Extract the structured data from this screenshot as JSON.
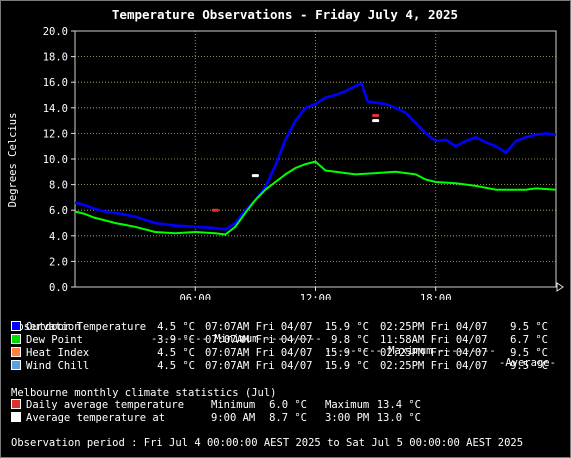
{
  "title": "Temperature Observations - Friday July 4, 2025",
  "chart_data": {
    "type": "line",
    "ylabel": "Degrees Celcius",
    "xlabel": "",
    "ylim": [
      0,
      20
    ],
    "xlim": [
      0,
      24
    ],
    "yticks": [
      "0.0",
      "2.0",
      "4.0",
      "6.0",
      "8.0",
      "10.0",
      "12.0",
      "14.0",
      "16.0",
      "18.0",
      "20.0"
    ],
    "xticks": [
      {
        "x": 6,
        "label": "06:00"
      },
      {
        "x": 12,
        "label": "12:00"
      },
      {
        "x": 18,
        "label": "18:00"
      }
    ],
    "grid": true,
    "series": [
      {
        "name": "Outdoor Temperature",
        "color": "#0000ff",
        "x": [
          0,
          0.5,
          1,
          1.5,
          2,
          3,
          4,
          5,
          6,
          7,
          7.5,
          8,
          8.5,
          9,
          9.5,
          10,
          10.5,
          11,
          11.5,
          12,
          12.5,
          13,
          13.5,
          14,
          14.3,
          14.6,
          15,
          15.5,
          16,
          16.5,
          17,
          17.5,
          18,
          18.5,
          19,
          19.5,
          20,
          20.5,
          21,
          21.5,
          22,
          22.5,
          23,
          23.5,
          24
        ],
        "y": [
          6.6,
          6.4,
          6.1,
          5.9,
          5.8,
          5.5,
          5.0,
          4.8,
          4.7,
          4.6,
          4.5,
          5.0,
          6.0,
          6.8,
          7.8,
          9.5,
          11.5,
          13.0,
          14.0,
          14.3,
          14.8,
          15.0,
          15.3,
          15.7,
          15.9,
          14.5,
          14.4,
          14.3,
          14.0,
          13.6,
          12.8,
          12.0,
          11.4,
          11.5,
          11.0,
          11.4,
          11.7,
          11.3,
          11.0,
          10.5,
          11.4,
          11.7,
          11.9,
          12.0,
          11.9
        ]
      },
      {
        "name": "Dew Point",
        "color": "#00ff00",
        "x": [
          0,
          0.5,
          1,
          1.5,
          2,
          3,
          4,
          5,
          6,
          7,
          7.5,
          8,
          8.5,
          9,
          9.5,
          10,
          10.5,
          11,
          11.5,
          12,
          12.5,
          13,
          14,
          15,
          16,
          17,
          17.5,
          18,
          19,
          20,
          21,
          22,
          22.5,
          23,
          24
        ],
        "y": [
          5.9,
          5.7,
          5.4,
          5.2,
          5.0,
          4.7,
          4.3,
          4.2,
          4.3,
          4.2,
          4.1,
          4.7,
          5.8,
          6.8,
          7.6,
          8.2,
          8.8,
          9.3,
          9.6,
          9.8,
          9.1,
          9.0,
          8.8,
          8.9,
          9.0,
          8.8,
          8.4,
          8.2,
          8.1,
          7.9,
          7.6,
          7.6,
          7.6,
          7.7,
          7.6
        ]
      },
      {
        "name": "Heat Index",
        "color": "#ff7f3f",
        "x": [],
        "y": []
      },
      {
        "name": "Wind Chill",
        "color": "#4fa8ff",
        "x": [],
        "y": []
      }
    ],
    "climate_markers": [
      {
        "name": "Daily average temperature minimum",
        "color": "#e03030",
        "x": 7,
        "y": 6.0
      },
      {
        "name": "Daily average temperature maximum",
        "color": "#e03030",
        "x": 15,
        "y": 13.4
      },
      {
        "name": "Average temperature at 9:00 AM",
        "color": "#ffffff",
        "x": 9,
        "y": 8.7
      },
      {
        "name": "Average temperature at 3:00 PM",
        "color": "#ffffff",
        "x": 15,
        "y": 13.0
      }
    ]
  },
  "legend": {
    "header": {
      "label": "Observation",
      "min": "--------- Minimum ---------",
      "max": "--------- Maximum ---------",
      "avg": "-Average-"
    },
    "rows": [
      {
        "color": "#0000ff",
        "label": "Outdoor Temperature",
        "min_val": "4.5 °C",
        "min_time": "07:07AM Fri 04/07",
        "max_val": "15.9 °C",
        "max_time": "02:25PM Fri 04/07",
        "avg": "9.5 °C"
      },
      {
        "color": "#00dd00",
        "label": "Dew Point",
        "min_val": "3.9 °C",
        "min_time": "07:07AM Fri 04/07",
        "max_val": "9.8 °C",
        "max_time": "11:58AM Fri 04/07",
        "avg": "6.7 °C"
      },
      {
        "color": "#ff8040",
        "label": "Heat Index",
        "min_val": "4.5 °C",
        "min_time": "07:07AM Fri 04/07",
        "max_val": "15.9 °C",
        "max_time": "02:25PM Fri 04/07",
        "avg": "9.5 °C"
      },
      {
        "color": "#5aa0e0",
        "label": "Wind Chill",
        "min_val": "4.5 °C",
        "min_time": "07:07AM Fri 04/07",
        "max_val": "15.9 °C",
        "max_time": "02:25PM Fri 04/07",
        "avg": "9.5 °C"
      }
    ]
  },
  "climate": {
    "header": "Melbourne monthly climate statistics (Jul)",
    "rows": [
      {
        "color": "#e03030",
        "label": "Daily average temperature",
        "a_label": "Minimum",
        "a_val": "6.0 °C",
        "b_label": "Maximum",
        "b_val": "13.4 °C"
      },
      {
        "color": "#ffffff",
        "label": "Average temperature at",
        "a_label": "9:00 AM",
        "a_val": "8.7 °C",
        "b_label": "3:00 PM",
        "b_val": "13.0 °C"
      }
    ]
  },
  "footer": "Observation period : Fri Jul 4 00:00:00 AEST 2025 to Sat Jul 5 00:00:00 AEST 2025"
}
